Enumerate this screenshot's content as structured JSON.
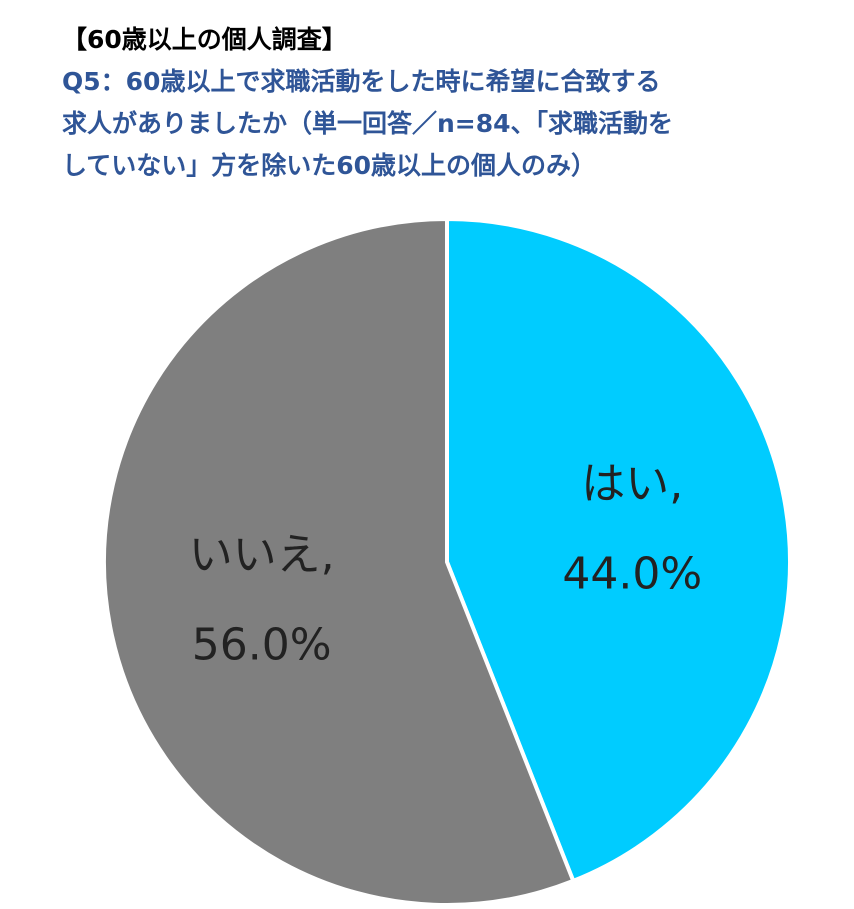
{
  "chart_data": {
    "type": "pie",
    "title": "【60歳以上の個人調査】",
    "subtitle": [
      "Q5：60歳以上で求職活動をした時に希望に合致する",
      "求人がありましたか（単一回答／n=84、「求職活動を",
      "していない」方を除いた60歳以上の個人のみ）"
    ],
    "categories": [
      "はい,",
      "いいえ,"
    ],
    "values": [
      44.0,
      56.0
    ],
    "value_labels": [
      "44.0%",
      "56.0%"
    ],
    "colors": [
      "#00ccff",
      "#7f7f7f"
    ]
  }
}
